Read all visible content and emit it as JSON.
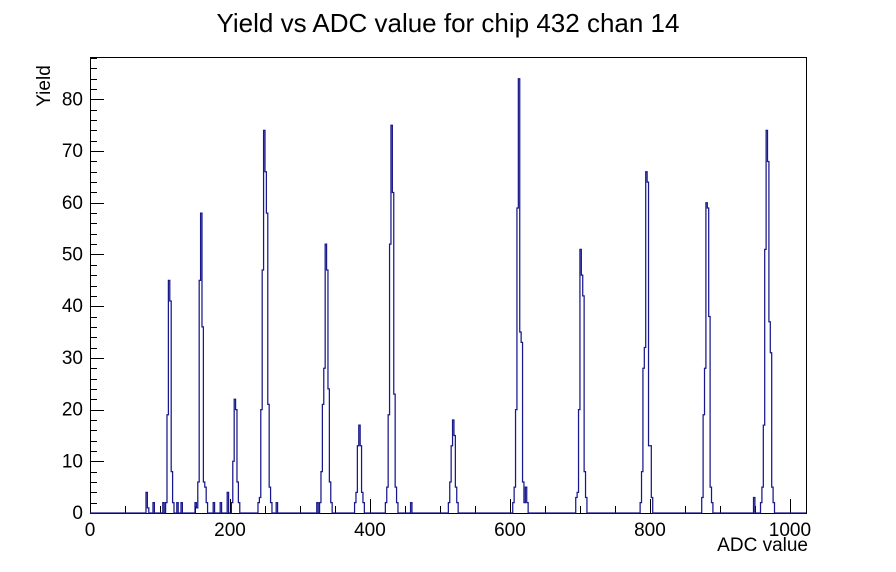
{
  "chart_data": {
    "type": "bar",
    "title": "Yield vs ADC value for chip 432 chan 14",
    "xlabel": "ADC value",
    "ylabel": "Yield",
    "xlim": [
      0,
      1023
    ],
    "ylim": [
      0,
      88.2
    ],
    "grid": false,
    "legend": null,
    "x_major_ticks": [
      0,
      200,
      400,
      600,
      800,
      1000
    ],
    "x_tick_labels": [
      "0",
      "200",
      "400",
      "600",
      "800",
      "1000"
    ],
    "x_minor_step": 50,
    "y_major_ticks": [
      0,
      10,
      20,
      30,
      40,
      50,
      60,
      70,
      80
    ],
    "y_tick_labels": [
      "0",
      "10",
      "20",
      "30",
      "40",
      "50",
      "60",
      "70",
      "80"
    ],
    "y_minor_step": 2,
    "line_color": "#18188c",
    "axis_color": "#000000",
    "background_color": "#ffffff",
    "bin_width": 2,
    "bins": [
      [
        80,
        4
      ],
      [
        82,
        1
      ],
      [
        90,
        2
      ],
      [
        104,
        2
      ],
      [
        108,
        2
      ],
      [
        110,
        19
      ],
      [
        112,
        45
      ],
      [
        114,
        41
      ],
      [
        116,
        8
      ],
      [
        118,
        2
      ],
      [
        124,
        2
      ],
      [
        130,
        2
      ],
      [
        150,
        2
      ],
      [
        152,
        1
      ],
      [
        154,
        6
      ],
      [
        156,
        45
      ],
      [
        158,
        58
      ],
      [
        160,
        36
      ],
      [
        162,
        6
      ],
      [
        164,
        5
      ],
      [
        166,
        2
      ],
      [
        176,
        2
      ],
      [
        186,
        2
      ],
      [
        196,
        4
      ],
      [
        202,
        2
      ],
      [
        204,
        10
      ],
      [
        206,
        22
      ],
      [
        208,
        20
      ],
      [
        210,
        6
      ],
      [
        212,
        2
      ],
      [
        240,
        2
      ],
      [
        242,
        3
      ],
      [
        244,
        20
      ],
      [
        246,
        47
      ],
      [
        248,
        74
      ],
      [
        250,
        66
      ],
      [
        252,
        58
      ],
      [
        254,
        21
      ],
      [
        256,
        5
      ],
      [
        258,
        2
      ],
      [
        266,
        2
      ],
      [
        324,
        2
      ],
      [
        328,
        2
      ],
      [
        330,
        8
      ],
      [
        332,
        21
      ],
      [
        334,
        28
      ],
      [
        336,
        52
      ],
      [
        338,
        47
      ],
      [
        340,
        24
      ],
      [
        342,
        6
      ],
      [
        344,
        2
      ],
      [
        378,
        2
      ],
      [
        380,
        4
      ],
      [
        382,
        13
      ],
      [
        384,
        17
      ],
      [
        386,
        13
      ],
      [
        388,
        4
      ],
      [
        390,
        2
      ],
      [
        422,
        2
      ],
      [
        424,
        5
      ],
      [
        426,
        19
      ],
      [
        428,
        52
      ],
      [
        430,
        75
      ],
      [
        432,
        62
      ],
      [
        434,
        23
      ],
      [
        436,
        5
      ],
      [
        438,
        2
      ],
      [
        458,
        2
      ],
      [
        512,
        2
      ],
      [
        514,
        6
      ],
      [
        516,
        13
      ],
      [
        518,
        18
      ],
      [
        520,
        15
      ],
      [
        522,
        5
      ],
      [
        524,
        2
      ],
      [
        604,
        2
      ],
      [
        606,
        5
      ],
      [
        608,
        20
      ],
      [
        610,
        59
      ],
      [
        612,
        84
      ],
      [
        614,
        35
      ],
      [
        616,
        33
      ],
      [
        618,
        6
      ],
      [
        620,
        2
      ],
      [
        622,
        5
      ],
      [
        624,
        2
      ],
      [
        694,
        3
      ],
      [
        696,
        4
      ],
      [
        698,
        20
      ],
      [
        700,
        51
      ],
      [
        702,
        46
      ],
      [
        704,
        42
      ],
      [
        706,
        8
      ],
      [
        708,
        3
      ],
      [
        786,
        2
      ],
      [
        788,
        8
      ],
      [
        790,
        28
      ],
      [
        792,
        32
      ],
      [
        794,
        66
      ],
      [
        796,
        64
      ],
      [
        798,
        13
      ],
      [
        800,
        13
      ],
      [
        802,
        3
      ],
      [
        874,
        3
      ],
      [
        876,
        19
      ],
      [
        878,
        28
      ],
      [
        880,
        60
      ],
      [
        882,
        59
      ],
      [
        884,
        38
      ],
      [
        886,
        5
      ],
      [
        888,
        2
      ],
      [
        948,
        3
      ],
      [
        958,
        2
      ],
      [
        960,
        5
      ],
      [
        962,
        17
      ],
      [
        964,
        51
      ],
      [
        966,
        74
      ],
      [
        968,
        68
      ],
      [
        970,
        37
      ],
      [
        972,
        31
      ],
      [
        974,
        5
      ],
      [
        976,
        2
      ]
    ]
  }
}
